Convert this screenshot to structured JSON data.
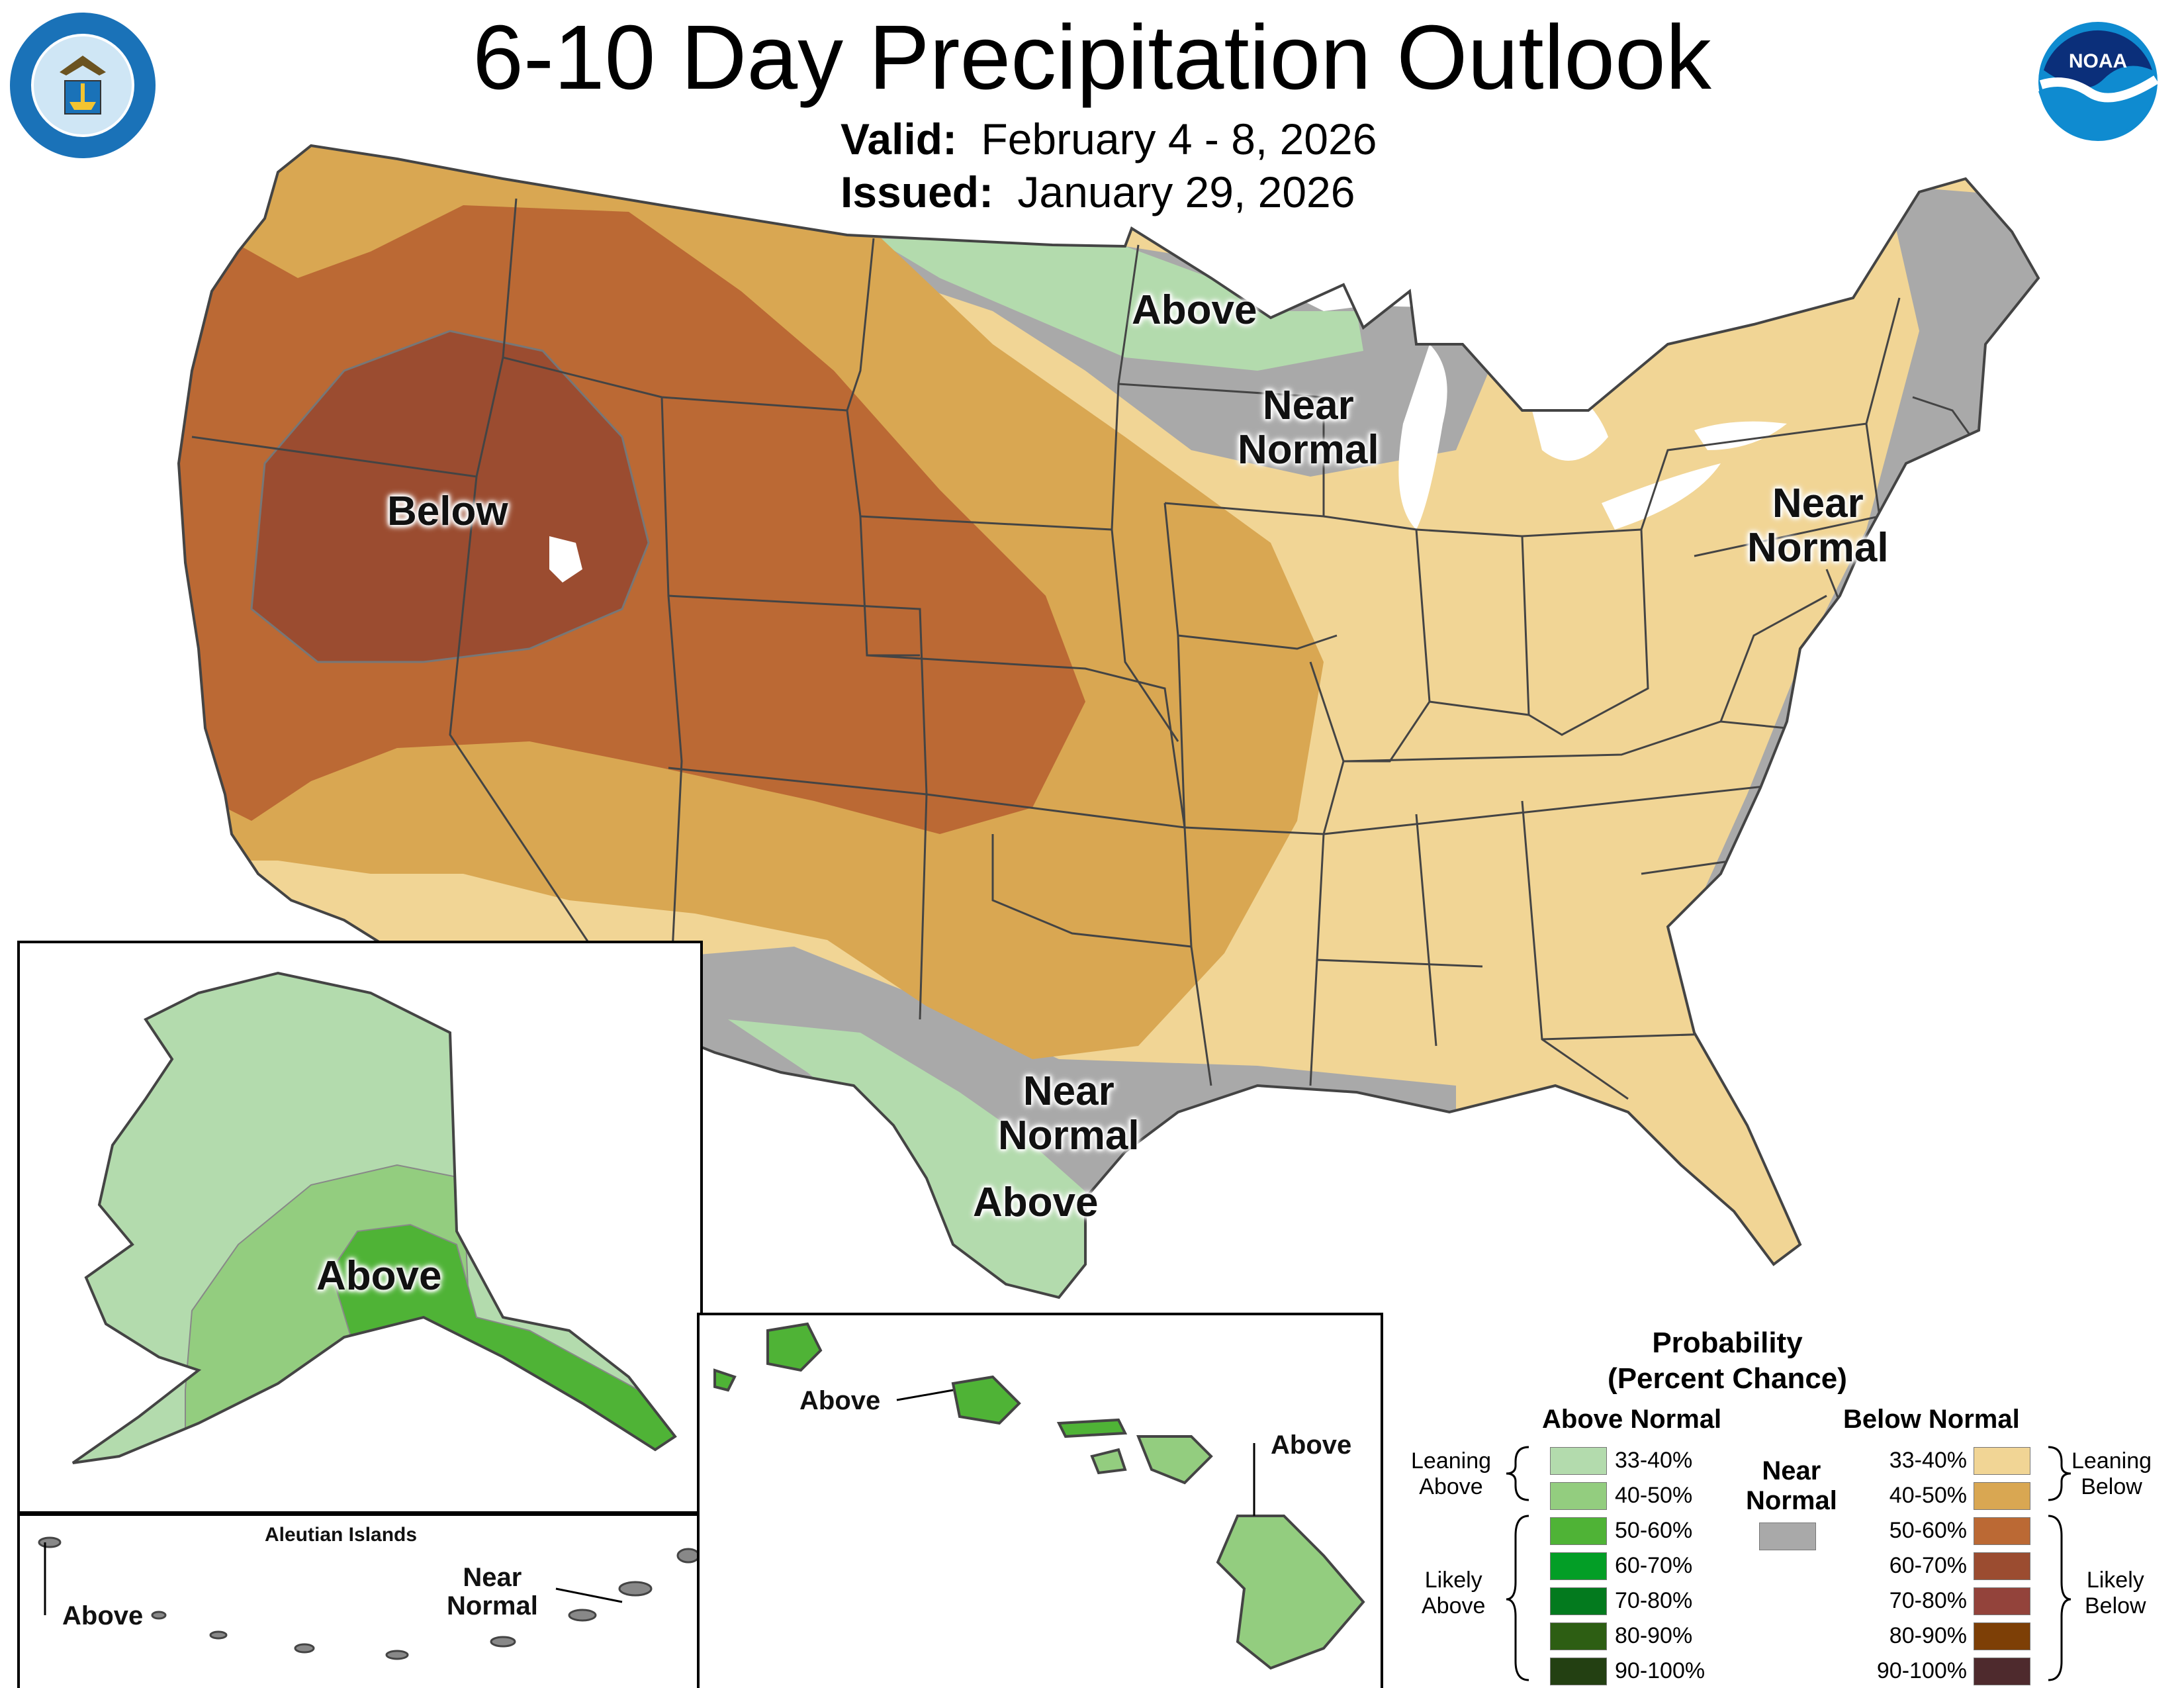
{
  "header": {
    "title": "6-10 Day Precipitation Outlook",
    "valid_label": "Valid:",
    "valid_value": "February 4 - 8, 2026",
    "issued_label": "Issued:",
    "issued_value": "January 29, 2026"
  },
  "logos": {
    "commerce_seal": "DEPARTMENT OF COMMERCE · UNITED STATES OF AMERICA",
    "noaa": "NOAA"
  },
  "map_labels": {
    "west": "Below",
    "north_plains": "Above",
    "great_lakes": "Near\nNormal",
    "northeast": "Near\nNormal",
    "south_texas": "Near\nNormal",
    "texas_coast": "Above",
    "alaska": "Above",
    "hawaii_oahu": "Above",
    "hawaii_big_island": "Above",
    "aleutian_title": "Aleutian Islands",
    "aleutian_west": "Above",
    "aleutian_east": "Near\nNormal"
  },
  "legend": {
    "title": "Probability",
    "subtitle": "(Percent Chance)",
    "above_header": "Above Normal",
    "below_header": "Below Normal",
    "near_header": "Near\nNormal",
    "leaning_above": "Leaning\nAbove",
    "likely_above": "Likely\nAbove",
    "leaning_below": "Leaning\nBelow",
    "likely_below": "Likely\nBelow",
    "above_classes": [
      {
        "label": "33-40%",
        "color": "#b3dbad"
      },
      {
        "label": "40-50%",
        "color": "#93cd7f"
      },
      {
        "label": "50-60%",
        "color": "#4fb336"
      },
      {
        "label": "60-70%",
        "color": "#039e26"
      },
      {
        "label": "70-80%",
        "color": "#037a1e"
      },
      {
        "label": "80-90%",
        "color": "#2d5e13"
      },
      {
        "label": "90-100%",
        "color": "#234012"
      }
    ],
    "below_classes": [
      {
        "label": "33-40%",
        "color": "#f1d595"
      },
      {
        "label": "40-50%",
        "color": "#d9a752"
      },
      {
        "label": "50-60%",
        "color": "#bb6934"
      },
      {
        "label": "60-70%",
        "color": "#9b4c30"
      },
      {
        "label": "70-80%",
        "color": "#93433b"
      },
      {
        "label": "80-90%",
        "color": "#7d3f06"
      },
      {
        "label": "90-100%",
        "color": "#4e2a2d"
      }
    ],
    "near_color": "#a9a9a9"
  },
  "colors": {
    "state_line": "#444444",
    "water": "#ffffff",
    "border": "#000000"
  }
}
